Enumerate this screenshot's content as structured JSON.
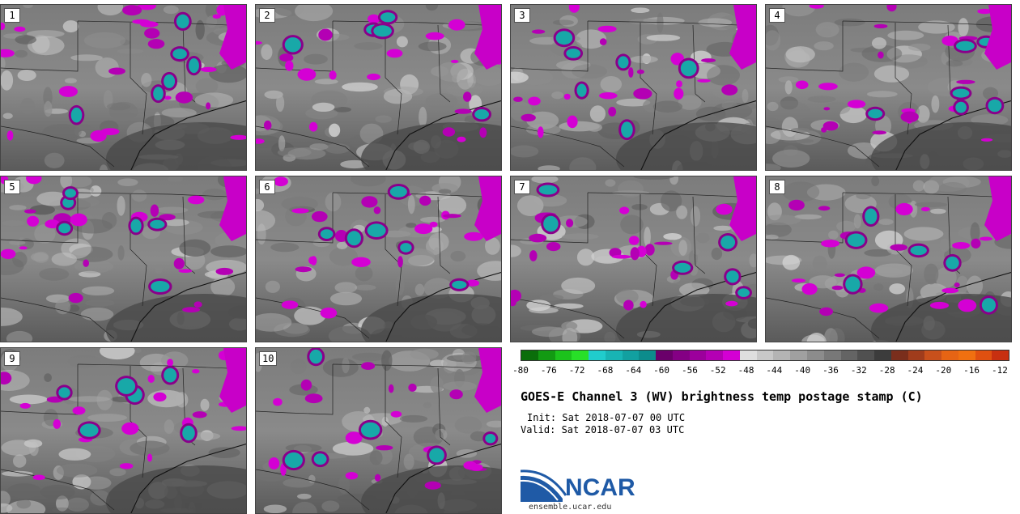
{
  "panels": [
    "1",
    "2",
    "3",
    "4",
    "5",
    "6",
    "7",
    "8",
    "9",
    "10"
  ],
  "colorbar": {
    "colors": [
      "#0a6e0a",
      "#129a12",
      "#1cc21c",
      "#28e028",
      "#20cccc",
      "#18b4b4",
      "#12a0a0",
      "#0c8c8c",
      "#6a006a",
      "#840084",
      "#9c009c",
      "#b400b4",
      "#d400d4",
      "#dedede",
      "#c8c8c8",
      "#b4b4b4",
      "#a0a0a0",
      "#8c8c8c",
      "#787878",
      "#646464",
      "#505050",
      "#3c3c3c",
      "#7a2e1c",
      "#a03c1c",
      "#c8501c",
      "#e66414",
      "#f07010",
      "#e05010",
      "#c83010"
    ],
    "ticks": [
      "-80",
      "-76",
      "-72",
      "-68",
      "-64",
      "-60",
      "-56",
      "-52",
      "-48",
      "-44",
      "-40",
      "-36",
      "-32",
      "-28",
      "-24",
      "-20",
      "-16",
      "-12"
    ]
  },
  "title": "GOES-E Channel 3 (WV) brightness temp postage stamp (C)",
  "init_line": "Init: Sat 2018-07-07 00 UTC",
  "valid_line": "Valid: Sat 2018-07-07 03 UTC",
  "logo": {
    "name": "NCAR",
    "url": "ensemble.ucar.edu"
  }
}
